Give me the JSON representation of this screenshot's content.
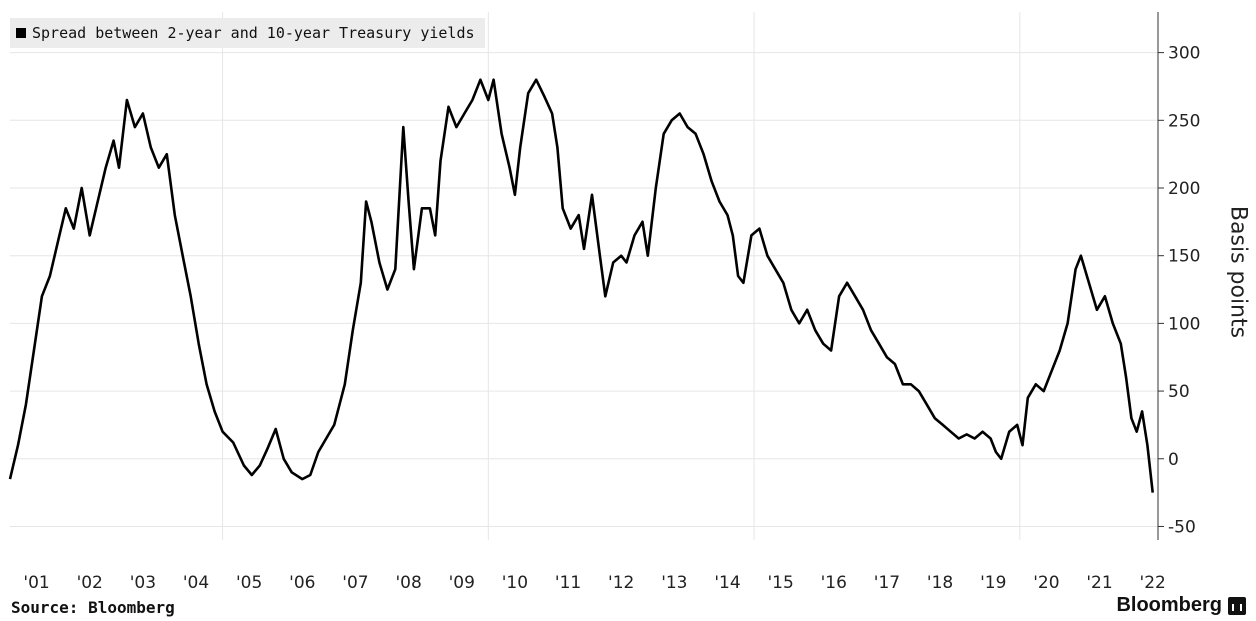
{
  "chart_data": {
    "type": "line",
    "series": [
      {
        "name": "Spread between 2-year and 10-year Treasury yields",
        "points": [
          [
            2001.0,
            -15
          ],
          [
            2001.15,
            10
          ],
          [
            2001.3,
            40
          ],
          [
            2001.45,
            80
          ],
          [
            2001.6,
            120
          ],
          [
            2001.75,
            135
          ],
          [
            2001.9,
            160
          ],
          [
            2002.05,
            185
          ],
          [
            2002.2,
            170
          ],
          [
            2002.35,
            200
          ],
          [
            2002.5,
            165
          ],
          [
            2002.65,
            190
          ],
          [
            2002.8,
            215
          ],
          [
            2002.95,
            235
          ],
          [
            2003.05,
            215
          ],
          [
            2003.2,
            265
          ],
          [
            2003.35,
            245
          ],
          [
            2003.5,
            255
          ],
          [
            2003.65,
            230
          ],
          [
            2003.8,
            215
          ],
          [
            2003.95,
            225
          ],
          [
            2004.1,
            180
          ],
          [
            2004.25,
            150
          ],
          [
            2004.4,
            120
          ],
          [
            2004.55,
            85
          ],
          [
            2004.7,
            55
          ],
          [
            2004.85,
            35
          ],
          [
            2005.0,
            20
          ],
          [
            2005.2,
            12
          ],
          [
            2005.4,
            -5
          ],
          [
            2005.55,
            -12
          ],
          [
            2005.7,
            -5
          ],
          [
            2005.85,
            8
          ],
          [
            2006.0,
            22
          ],
          [
            2006.15,
            0
          ],
          [
            2006.3,
            -10
          ],
          [
            2006.5,
            -15
          ],
          [
            2006.65,
            -12
          ],
          [
            2006.8,
            5
          ],
          [
            2006.95,
            15
          ],
          [
            2007.1,
            25
          ],
          [
            2007.3,
            55
          ],
          [
            2007.45,
            95
          ],
          [
            2007.6,
            130
          ],
          [
            2007.7,
            190
          ],
          [
            2007.8,
            175
          ],
          [
            2007.95,
            145
          ],
          [
            2008.1,
            125
          ],
          [
            2008.25,
            140
          ],
          [
            2008.4,
            245
          ],
          [
            2008.5,
            190
          ],
          [
            2008.6,
            140
          ],
          [
            2008.75,
            185
          ],
          [
            2008.9,
            185
          ],
          [
            2009.0,
            165
          ],
          [
            2009.1,
            220
          ],
          [
            2009.25,
            260
          ],
          [
            2009.4,
            245
          ],
          [
            2009.55,
            255
          ],
          [
            2009.7,
            265
          ],
          [
            2009.85,
            280
          ],
          [
            2010.0,
            265
          ],
          [
            2010.1,
            280
          ],
          [
            2010.25,
            240
          ],
          [
            2010.4,
            215
          ],
          [
            2010.5,
            195
          ],
          [
            2010.6,
            230
          ],
          [
            2010.75,
            270
          ],
          [
            2010.9,
            280
          ],
          [
            2011.05,
            268
          ],
          [
            2011.2,
            255
          ],
          [
            2011.3,
            230
          ],
          [
            2011.4,
            185
          ],
          [
            2011.55,
            170
          ],
          [
            2011.7,
            180
          ],
          [
            2011.8,
            155
          ],
          [
            2011.95,
            195
          ],
          [
            2012.1,
            150
          ],
          [
            2012.2,
            120
          ],
          [
            2012.35,
            145
          ],
          [
            2012.5,
            150
          ],
          [
            2012.6,
            145
          ],
          [
            2012.75,
            165
          ],
          [
            2012.9,
            175
          ],
          [
            2013.0,
            150
          ],
          [
            2013.15,
            200
          ],
          [
            2013.3,
            240
          ],
          [
            2013.45,
            250
          ],
          [
            2013.6,
            255
          ],
          [
            2013.75,
            245
          ],
          [
            2013.9,
            240
          ],
          [
            2014.05,
            225
          ],
          [
            2014.2,
            205
          ],
          [
            2014.35,
            190
          ],
          [
            2014.5,
            180
          ],
          [
            2014.6,
            165
          ],
          [
            2014.7,
            135
          ],
          [
            2014.8,
            130
          ],
          [
            2014.95,
            165
          ],
          [
            2015.1,
            170
          ],
          [
            2015.25,
            150
          ],
          [
            2015.4,
            140
          ],
          [
            2015.55,
            130
          ],
          [
            2015.7,
            110
          ],
          [
            2015.85,
            100
          ],
          [
            2016.0,
            110
          ],
          [
            2016.15,
            95
          ],
          [
            2016.3,
            85
          ],
          [
            2016.45,
            80
          ],
          [
            2016.6,
            120
          ],
          [
            2016.75,
            130
          ],
          [
            2016.9,
            120
          ],
          [
            2017.05,
            110
          ],
          [
            2017.2,
            95
          ],
          [
            2017.35,
            85
          ],
          [
            2017.5,
            75
          ],
          [
            2017.65,
            70
          ],
          [
            2017.8,
            55
          ],
          [
            2017.95,
            55
          ],
          [
            2018.1,
            50
          ],
          [
            2018.25,
            40
          ],
          [
            2018.4,
            30
          ],
          [
            2018.55,
            25
          ],
          [
            2018.7,
            20
          ],
          [
            2018.85,
            15
          ],
          [
            2019.0,
            18
          ],
          [
            2019.15,
            15
          ],
          [
            2019.3,
            20
          ],
          [
            2019.45,
            15
          ],
          [
            2019.55,
            5
          ],
          [
            2019.65,
            0
          ],
          [
            2019.8,
            20
          ],
          [
            2019.95,
            25
          ],
          [
            2020.05,
            10
          ],
          [
            2020.15,
            45
          ],
          [
            2020.3,
            55
          ],
          [
            2020.45,
            50
          ],
          [
            2020.6,
            65
          ],
          [
            2020.75,
            80
          ],
          [
            2020.9,
            100
          ],
          [
            2021.05,
            140
          ],
          [
            2021.15,
            150
          ],
          [
            2021.3,
            130
          ],
          [
            2021.45,
            110
          ],
          [
            2021.6,
            120
          ],
          [
            2021.75,
            100
          ],
          [
            2021.9,
            85
          ],
          [
            2022.0,
            60
          ],
          [
            2022.1,
            30
          ],
          [
            2022.2,
            20
          ],
          [
            2022.3,
            35
          ],
          [
            2022.4,
            10
          ],
          [
            2022.5,
            -25
          ]
        ]
      }
    ],
    "ylabel": "Basis points",
    "xlim": [
      2001.0,
      2022.6
    ],
    "ylim": [
      -60,
      330
    ],
    "yticks": [
      300,
      250,
      200,
      150,
      100,
      50,
      0,
      -50
    ],
    "yticklabels": [
      "300",
      "250",
      "200",
      "150",
      "100",
      "50",
      "0",
      "-50"
    ],
    "xtick_positions": [
      2001,
      2002,
      2003,
      2004,
      2005,
      2006,
      2007,
      2008,
      2009,
      2010,
      2011,
      2012,
      2013,
      2014,
      2015,
      2016,
      2017,
      2018,
      2019,
      2020,
      2021,
      2022
    ],
    "xticklabels": [
      "'01",
      "'02",
      "'03",
      "'04",
      "'05",
      "'06",
      "'07",
      "'08",
      "'09",
      "'10",
      "'11",
      "'12",
      "'13",
      "'14",
      "'15",
      "'16",
      "'17",
      "'18",
      "'19",
      "'20",
      "'21",
      "'22"
    ],
    "vgrid_years": [
      2005,
      2010,
      2015,
      2020
    ],
    "legend_position": "top-left",
    "grid": true,
    "colors": {
      "line": "#000000",
      "grid": "#e6e6e6",
      "legend_bg": "#ececec"
    }
  },
  "footer": {
    "source": "Source: Bloomberg",
    "brand": "Bloomberg"
  }
}
